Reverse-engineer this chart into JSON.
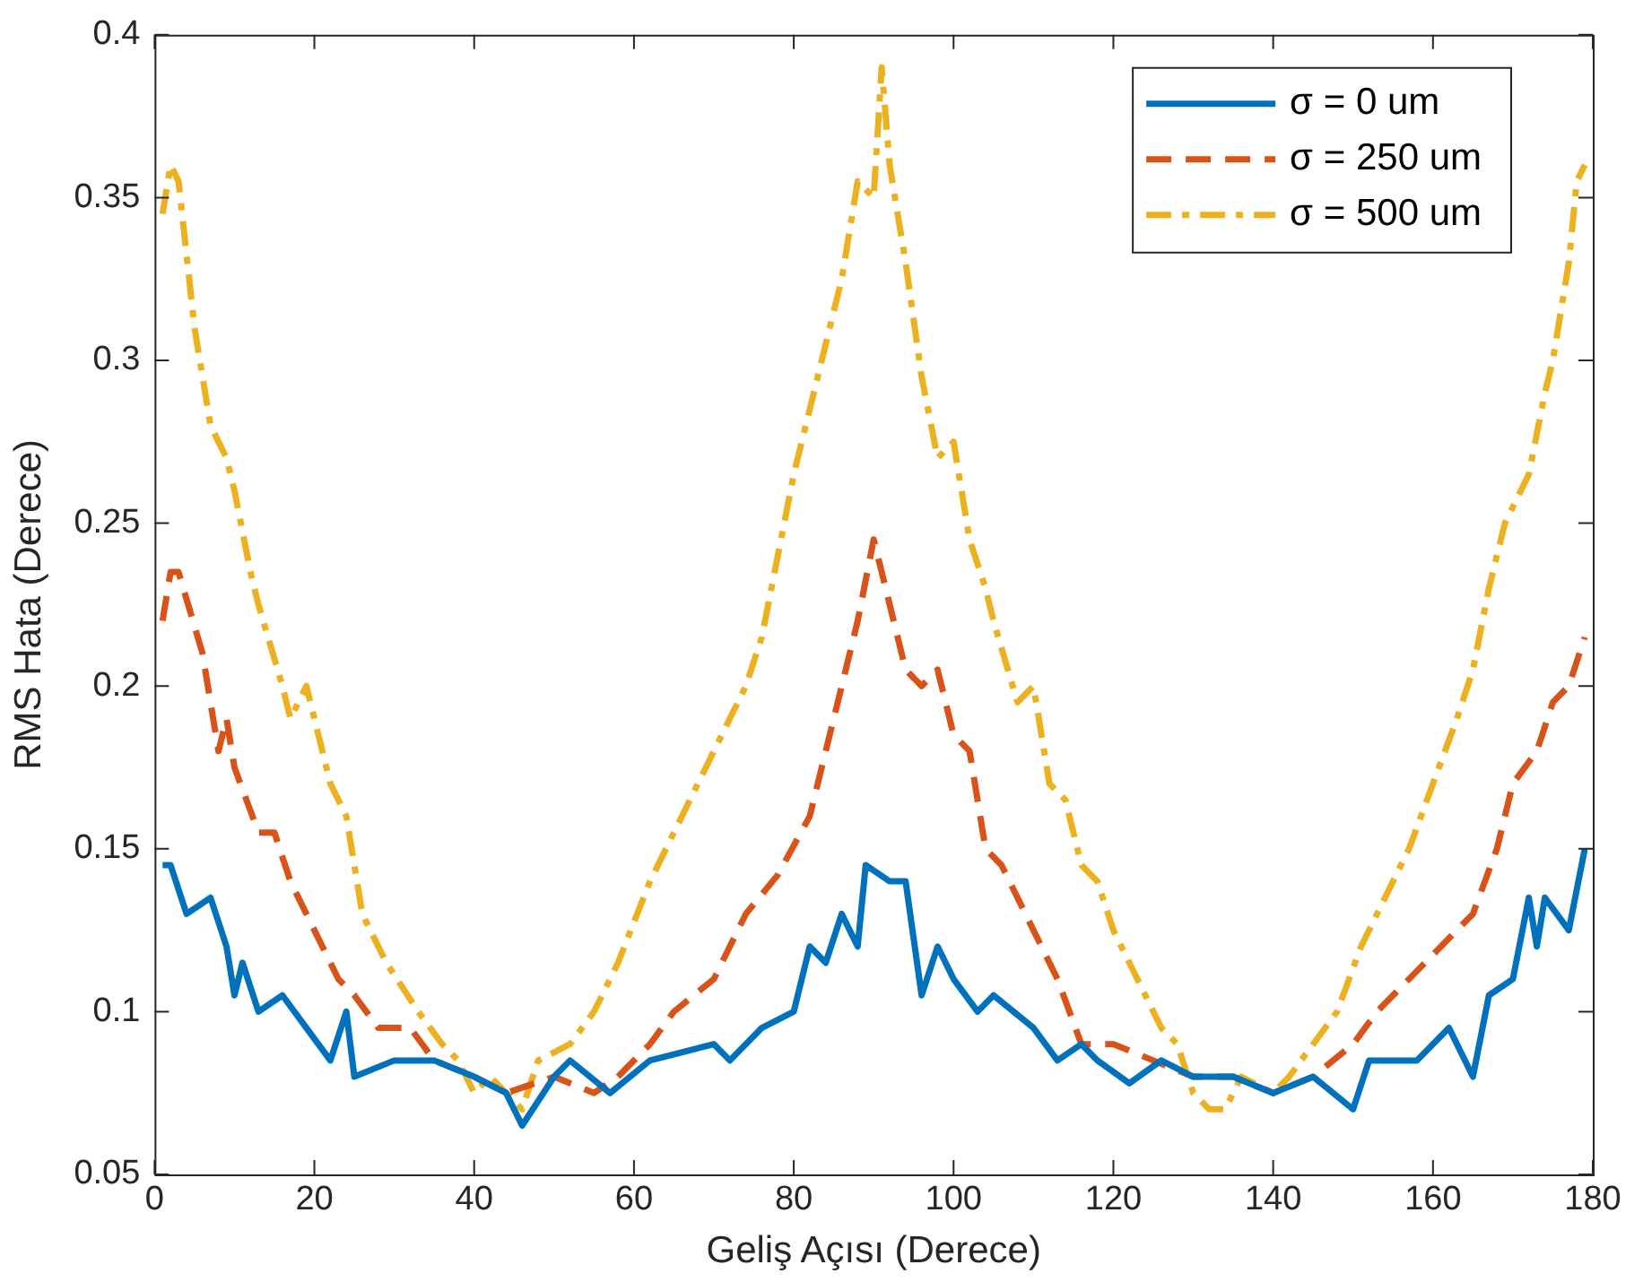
{
  "chart_data": {
    "type": "line",
    "xlabel": "Geliş Açısı (Derece)",
    "ylabel": "RMS Hata (Derece)",
    "xlim": [
      0,
      180
    ],
    "xticks": [
      0,
      20,
      40,
      60,
      80,
      100,
      120,
      140,
      160,
      180
    ],
    "ylim": [
      0.05,
      0.4
    ],
    "yticks": [
      0.05,
      0.1,
      0.15,
      0.2,
      0.25,
      0.3,
      0.35,
      0.4
    ],
    "grid": false,
    "legend": "top right",
    "marker": "none",
    "series": [
      {
        "name": "σ = 0 um",
        "color": "#0072bd",
        "line_style": "solid",
        "x": [
          1,
          2,
          4,
          7,
          9,
          10,
          11,
          13,
          16,
          19,
          22,
          24,
          25,
          30,
          35,
          40,
          44,
          46,
          50,
          52,
          57,
          62,
          70,
          72,
          76,
          80,
          82,
          84,
          86,
          88,
          89,
          92,
          94,
          96,
          98,
          100,
          103,
          105,
          110,
          113,
          116,
          118,
          122,
          126,
          130,
          135,
          140,
          145,
          150,
          152,
          158,
          162,
          165,
          167,
          170,
          172,
          173,
          174,
          177,
          179
        ],
        "values": [
          0.145,
          0.145,
          0.13,
          0.135,
          0.12,
          0.105,
          0.115,
          0.1,
          0.105,
          0.095,
          0.085,
          0.1,
          0.08,
          0.085,
          0.085,
          0.08,
          0.075,
          0.065,
          0.08,
          0.085,
          0.075,
          0.085,
          0.09,
          0.085,
          0.095,
          0.1,
          0.12,
          0.115,
          0.13,
          0.12,
          0.145,
          0.14,
          0.14,
          0.105,
          0.12,
          0.11,
          0.1,
          0.105,
          0.095,
          0.085,
          0.09,
          0.085,
          0.078,
          0.085,
          0.08,
          0.08,
          0.075,
          0.08,
          0.07,
          0.085,
          0.085,
          0.095,
          0.08,
          0.105,
          0.11,
          0.135,
          0.12,
          0.135,
          0.125,
          0.15
        ]
      },
      {
        "name": "σ = 250 um",
        "color": "#d95319",
        "line_style": "dashed",
        "x": [
          1,
          2,
          3,
          6,
          8,
          9,
          10,
          13,
          15,
          17,
          20,
          23,
          25,
          28,
          32,
          35,
          40,
          44,
          50,
          55,
          58,
          62,
          65,
          70,
          74,
          78,
          82,
          84,
          86,
          88,
          90,
          92,
          94,
          96,
          98,
          100,
          102,
          104,
          106,
          110,
          113,
          116,
          120,
          125,
          130,
          135,
          140,
          145,
          150,
          153,
          157,
          161,
          165,
          168,
          170,
          173,
          175,
          177,
          179
        ],
        "values": [
          0.22,
          0.235,
          0.235,
          0.21,
          0.18,
          0.19,
          0.175,
          0.155,
          0.155,
          0.14,
          0.125,
          0.11,
          0.105,
          0.095,
          0.095,
          0.085,
          0.08,
          0.075,
          0.08,
          0.075,
          0.08,
          0.09,
          0.1,
          0.11,
          0.13,
          0.142,
          0.16,
          0.18,
          0.2,
          0.22,
          0.245,
          0.225,
          0.205,
          0.2,
          0.205,
          0.185,
          0.18,
          0.15,
          0.145,
          0.125,
          0.11,
          0.09,
          0.09,
          0.085,
          0.08,
          0.08,
          0.075,
          0.08,
          0.09,
          0.1,
          0.11,
          0.12,
          0.13,
          0.15,
          0.17,
          0.18,
          0.195,
          0.2,
          0.215
        ]
      },
      {
        "name": "σ = 500 um",
        "color": "#edb120",
        "line_style": "dashdot",
        "x": [
          1,
          2,
          3,
          5,
          7,
          9,
          10,
          12,
          13,
          16,
          17,
          19,
          22,
          24,
          26,
          29,
          33,
          36,
          38,
          40,
          42,
          46,
          48,
          52,
          55,
          58,
          62,
          66,
          69,
          72,
          74,
          76,
          78,
          80,
          82,
          84,
          86,
          88,
          90,
          91,
          92,
          94,
          96,
          98,
          100,
          102,
          104,
          105,
          108,
          110,
          112,
          114,
          116,
          118,
          120,
          122,
          124,
          126,
          128,
          130,
          132,
          134,
          136,
          140,
          142,
          145,
          148,
          151,
          154,
          157,
          160,
          163,
          165,
          167,
          169,
          172,
          174,
          175,
          177,
          178,
          179
        ],
        "values": [
          0.345,
          0.36,
          0.355,
          0.31,
          0.28,
          0.27,
          0.26,
          0.235,
          0.225,
          0.2,
          0.19,
          0.2,
          0.17,
          0.16,
          0.13,
          0.115,
          0.1,
          0.09,
          0.085,
          0.075,
          0.08,
          0.07,
          0.085,
          0.09,
          0.1,
          0.115,
          0.14,
          0.16,
          0.175,
          0.19,
          0.2,
          0.215,
          0.24,
          0.265,
          0.285,
          0.305,
          0.325,
          0.355,
          0.35,
          0.39,
          0.36,
          0.33,
          0.295,
          0.27,
          0.275,
          0.245,
          0.23,
          0.22,
          0.195,
          0.2,
          0.17,
          0.165,
          0.145,
          0.14,
          0.125,
          0.115,
          0.105,
          0.095,
          0.09,
          0.075,
          0.07,
          0.07,
          0.08,
          0.075,
          0.08,
          0.09,
          0.1,
          0.12,
          0.135,
          0.15,
          0.17,
          0.19,
          0.205,
          0.23,
          0.25,
          0.265,
          0.29,
          0.3,
          0.33,
          0.355,
          0.36
        ]
      }
    ]
  }
}
